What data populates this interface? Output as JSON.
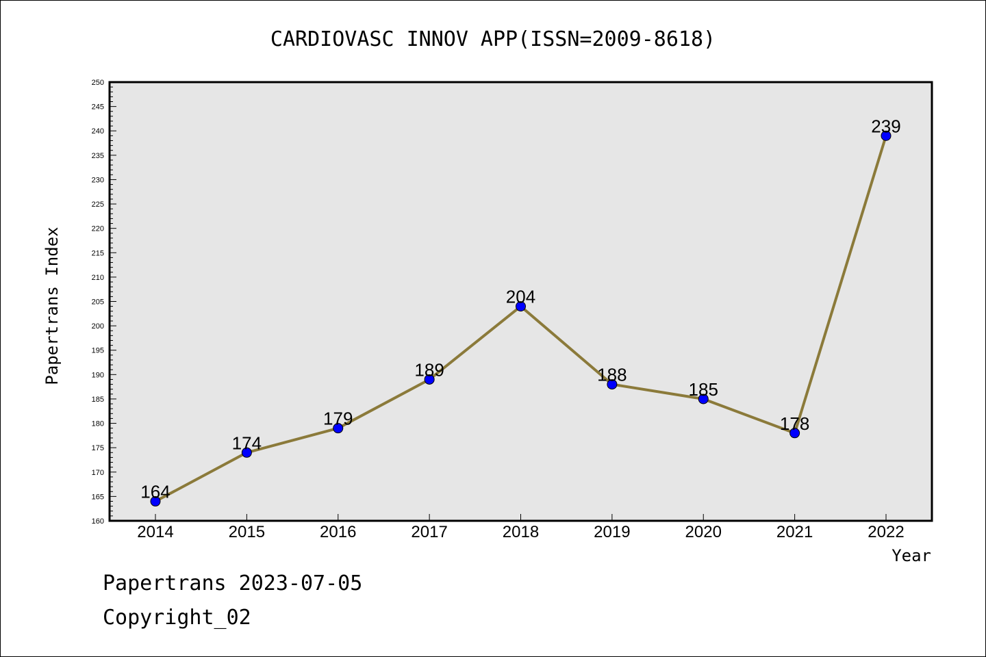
{
  "chart_data": {
    "type": "line",
    "title": "CARDIOVASC INNOV APP(ISSN=2009-8618)",
    "xlabel": "Year",
    "ylabel": "Papertrans Index",
    "categories": [
      "2014",
      "2015",
      "2016",
      "2017",
      "2018",
      "2019",
      "2020",
      "2021",
      "2022"
    ],
    "series": [
      {
        "values": [
          164,
          174,
          179,
          189,
          204,
          188,
          185,
          178,
          239
        ]
      }
    ],
    "ylim": [
      160,
      250
    ],
    "yticks": [
      "160",
      "165",
      "170",
      "175",
      "180",
      "185",
      "190",
      "195",
      "200",
      "205",
      "210",
      "215",
      "220",
      "225",
      "230",
      "235",
      "240",
      "245",
      "250"
    ],
    "grid": false,
    "colors": {
      "line": "#8b7a3a",
      "marker": "#0000ff",
      "plot_background": "#e6e6e6"
    }
  },
  "footer": {
    "date_text": "Papertrans 2023-07-05",
    "copyright_text": "Copyright_02"
  }
}
